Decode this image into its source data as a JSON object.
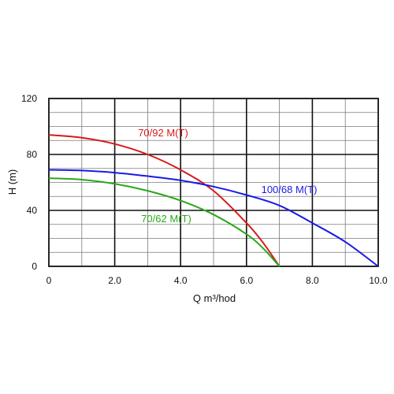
{
  "chart_data": {
    "type": "line",
    "xlabel": "Q m³/hod",
    "ylabel": "H (m)",
    "xlim": [
      0,
      10
    ],
    "ylim": [
      0,
      120
    ],
    "x_ticks": [
      "0",
      "2.0",
      "4.0",
      "6.0",
      "8.0",
      "10.0"
    ],
    "y_ticks": [
      "0",
      "40",
      "80",
      "120"
    ],
    "grid": true,
    "series": [
      {
        "name": "70/92 M(T)",
        "color": "#d7191c",
        "x": [
          0,
          1,
          2,
          3,
          4,
          5,
          6,
          6.5,
          7.0
        ],
        "y": [
          94,
          92,
          87.5,
          80,
          69,
          54,
          31,
          17,
          0
        ]
      },
      {
        "name": "100/68 M(T)",
        "color": "#1a1ae6",
        "x": [
          0,
          1,
          2,
          3,
          4,
          5,
          6,
          7,
          8,
          9,
          10.0
        ],
        "y": [
          69,
          68.5,
          67,
          64.5,
          61.5,
          57,
          51,
          43.5,
          31,
          17.5,
          0
        ]
      },
      {
        "name": "70/62 M(T)",
        "color": "#2aa81a",
        "x": [
          0,
          1,
          2,
          3,
          4,
          5,
          6,
          6.5,
          7.0
        ],
        "y": [
          63,
          62,
          59,
          54,
          47,
          37,
          23,
          13,
          0
        ]
      }
    ],
    "annotations": [
      {
        "text": "70/92 M(T)",
        "series": 0
      },
      {
        "text": "100/68 M(T)",
        "series": 1
      },
      {
        "text": "70/62 M(T)",
        "series": 2
      }
    ]
  }
}
